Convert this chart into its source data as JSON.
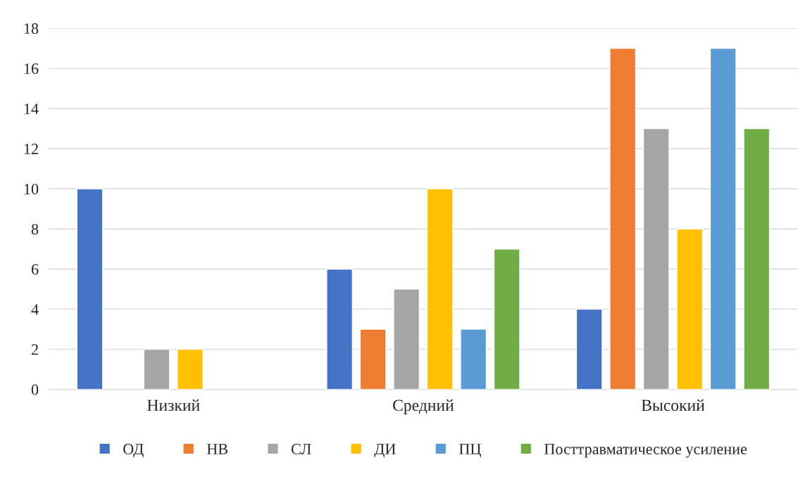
{
  "chart_data": {
    "type": "bar",
    "categories": [
      "Низкий",
      "Средний",
      "Высокий"
    ],
    "series": [
      {
        "name": "ОД",
        "color": "#4472c4",
        "values": [
          10,
          6,
          4
        ]
      },
      {
        "name": "НВ",
        "color": "#ed7d31",
        "values": [
          null,
          3,
          17
        ]
      },
      {
        "name": "СЛ",
        "color": "#a5a5a5",
        "values": [
          2,
          5,
          13
        ]
      },
      {
        "name": "ДИ",
        "color": "#ffc000",
        "values": [
          2,
          10,
          8
        ]
      },
      {
        "name": "ПЦ",
        "color": "#5b9bd5",
        "values": [
          null,
          3,
          17
        ]
      },
      {
        "name": "Посттравматическое усиление",
        "color": "#70ad47",
        "values": [
          null,
          7,
          13
        ]
      }
    ],
    "ylim": [
      0,
      18
    ],
    "yticks": [
      0,
      2,
      4,
      6,
      8,
      10,
      12,
      14,
      16,
      18
    ],
    "grid": "y",
    "legend": "bottom"
  }
}
